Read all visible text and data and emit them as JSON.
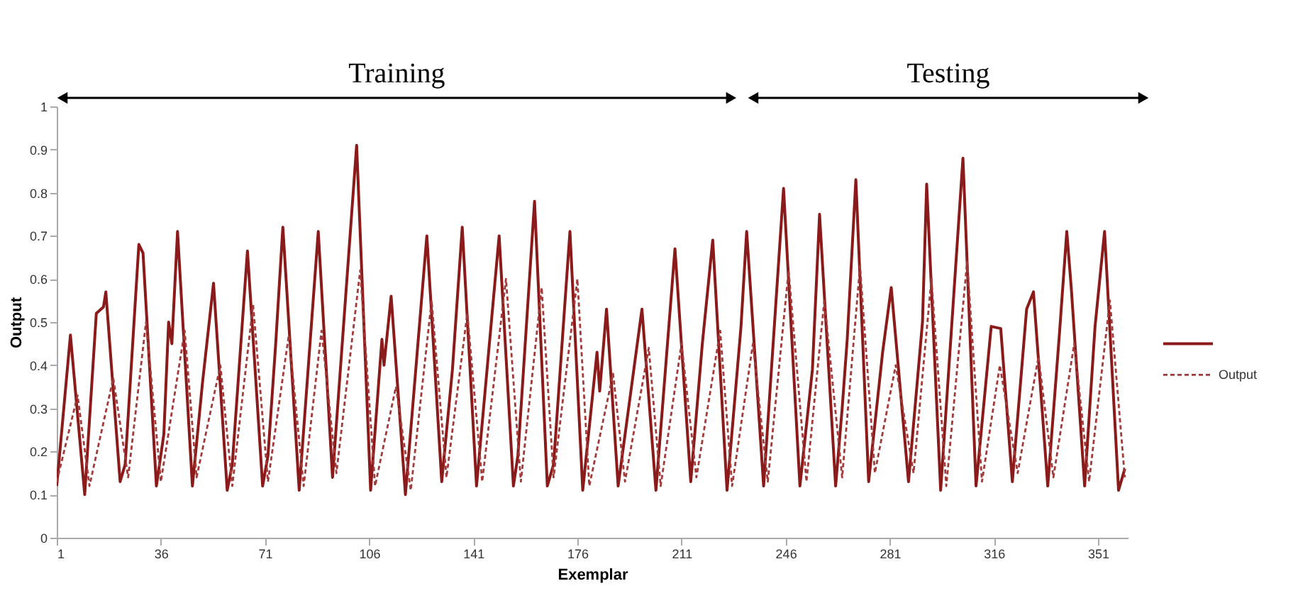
{
  "chart_data": {
    "type": "line",
    "xlabel": "Exemplar",
    "ylabel": "Output",
    "annotations": [
      "Training",
      "Testing"
    ],
    "xlim": [
      1,
      361
    ],
    "xticks": [
      1,
      36,
      71,
      106,
      141,
      176,
      211,
      246,
      281,
      316,
      351
    ],
    "ylim": [
      0,
      1
    ],
    "yticks": [
      0,
      0.1,
      0.2,
      0.3,
      0.4,
      0.5,
      0.6,
      0.7,
      0.8,
      0.9,
      1
    ],
    "grid": false,
    "legend": "right",
    "marker": "none",
    "series": [
      {
        "color": "#8b1a1a",
        "line_style": "solid",
        "x": [
          1,
          5.6,
          10.4,
          14.3,
          16.7,
          17.5,
          22.3,
          24,
          28.6,
          30,
          34.5,
          37,
          38.6,
          39.7,
          41.6,
          46.6,
          50,
          53.7,
          58.3,
          60,
          65.1,
          70.2,
          72,
          74.6,
          77,
          82.5,
          88.9,
          93.7,
          101.8,
          106.5,
          110.3,
          111,
          113.4,
          118.2,
          125.4,
          130.4,
          134,
          137.3,
          142.1,
          149.7,
          154.5,
          156,
          161.6,
          165.9,
          168,
          173.5,
          177.8,
          182.6,
          183.5,
          185.8,
          189.7,
          197.7,
          202.4,
          208.8,
          214.1,
          218,
          221.5,
          226.3,
          231,
          232.9,
          238.6,
          245.3,
          250.8,
          255,
          257.4,
          262.8,
          265,
          266.7,
          269.6,
          273.9,
          278.6,
          281.5,
          287.3,
          292,
          293.4,
          298.1,
          305.6,
          310,
          315.1,
          318.3,
          322.2,
          327,
          329.3,
          334.1,
          338,
          340.5,
          342,
          346.5,
          350,
          353.2,
          357.9,
          360
        ],
        "values": [
          0.12,
          0.47,
          0.1,
          0.52,
          0.535,
          0.57,
          0.13,
          0.17,
          0.68,
          0.66,
          0.12,
          0.24,
          0.5,
          0.45,
          0.71,
          0.12,
          0.36,
          0.59,
          0.11,
          0.17,
          0.665,
          0.12,
          0.19,
          0.45,
          0.72,
          0.11,
          0.71,
          0.14,
          0.91,
          0.11,
          0.46,
          0.4,
          0.56,
          0.1,
          0.7,
          0.13,
          0.39,
          0.72,
          0.12,
          0.7,
          0.12,
          0.19,
          0.78,
          0.12,
          0.17,
          0.71,
          0.11,
          0.43,
          0.34,
          0.53,
          0.12,
          0.53,
          0.11,
          0.67,
          0.13,
          0.45,
          0.69,
          0.11,
          0.49,
          0.71,
          0.12,
          0.81,
          0.12,
          0.39,
          0.75,
          0.12,
          0.3,
          0.46,
          0.83,
          0.13,
          0.43,
          0.58,
          0.13,
          0.5,
          0.82,
          0.11,
          0.88,
          0.12,
          0.49,
          0.485,
          0.13,
          0.53,
          0.57,
          0.12,
          0.47,
          0.71,
          0.58,
          0.12,
          0.49,
          0.71,
          0.11,
          0.16
        ]
      },
      {
        "name": "Output",
        "color": "#a33a3a",
        "line_style": "dashed",
        "x": [
          1,
          8,
          12,
          20,
          25,
          31,
          36,
          44,
          48,
          56,
          60,
          67,
          72,
          79,
          84,
          90,
          95,
          103,
          108,
          115,
          120,
          127,
          132,
          139,
          144,
          152,
          157,
          164,
          168,
          176,
          180,
          188,
          192,
          200,
          204,
          211,
          216,
          224,
          228,
          235,
          240,
          247,
          253,
          259,
          265,
          271,
          276,
          283,
          289,
          295,
          300,
          307,
          312,
          318,
          324,
          331,
          336,
          343,
          348,
          355,
          360
        ],
        "values": [
          0.13,
          0.33,
          0.12,
          0.37,
          0.14,
          0.5,
          0.13,
          0.48,
          0.14,
          0.4,
          0.12,
          0.54,
          0.13,
          0.47,
          0.12,
          0.48,
          0.15,
          0.62,
          0.12,
          0.35,
          0.11,
          0.55,
          0.14,
          0.52,
          0.13,
          0.6,
          0.13,
          0.58,
          0.14,
          0.6,
          0.12,
          0.38,
          0.13,
          0.44,
          0.12,
          0.45,
          0.14,
          0.48,
          0.12,
          0.45,
          0.13,
          0.62,
          0.13,
          0.55,
          0.14,
          0.63,
          0.15,
          0.4,
          0.15,
          0.6,
          0.12,
          0.64,
          0.13,
          0.4,
          0.15,
          0.42,
          0.14,
          0.45,
          0.13,
          0.55,
          0.14
        ]
      }
    ]
  }
}
